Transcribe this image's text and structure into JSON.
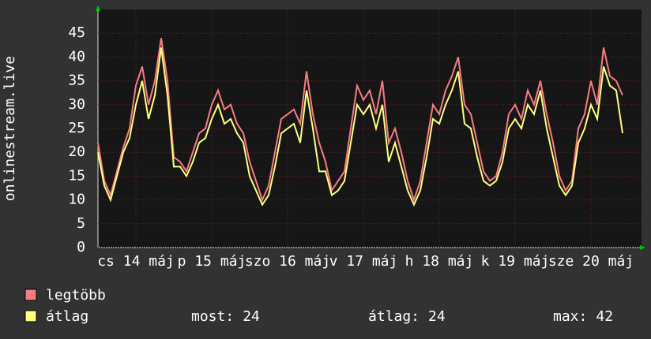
{
  "chart_data": {
    "type": "line",
    "ylabel": "onlinestream.live",
    "x": [
      0,
      2,
      4,
      6,
      8,
      10,
      12,
      14,
      16,
      18,
      20,
      22,
      24,
      26,
      28,
      30,
      32,
      34,
      36,
      38,
      40,
      42,
      44,
      46,
      48,
      50,
      52,
      54,
      56,
      58,
      60,
      62,
      64,
      66,
      68,
      70,
      72,
      74,
      76,
      78,
      80,
      82,
      84,
      86,
      88,
      90,
      92,
      94,
      96,
      98,
      100,
      102,
      104,
      106,
      108,
      110,
      112,
      114,
      116,
      118,
      120,
      122,
      124,
      126,
      128,
      130,
      132,
      134,
      136,
      138,
      140,
      142,
      144,
      146,
      148,
      150,
      152,
      154,
      156,
      158,
      160,
      162,
      164,
      166
    ],
    "series": [
      {
        "name": "legtöbb",
        "color": "#f87c84",
        "values": [
          22,
          14,
          11,
          16,
          21,
          25,
          34,
          38,
          30,
          35,
          44,
          35,
          19,
          18,
          16,
          20,
          24,
          25,
          30,
          33,
          29,
          30,
          26,
          24,
          18,
          14,
          10,
          13,
          20,
          27,
          28,
          29,
          26,
          37,
          28,
          22,
          18,
          12,
          14,
          16,
          25,
          34,
          31,
          33,
          28,
          35,
          22,
          25,
          20,
          14,
          10,
          14,
          22,
          30,
          28,
          33,
          36,
          40,
          30,
          28,
          22,
          16,
          14,
          15,
          20,
          28,
          30,
          27,
          33,
          30,
          35,
          28,
          22,
          15,
          12,
          14,
          25,
          28,
          35,
          30,
          42,
          36,
          35,
          32
        ]
      },
      {
        "name": "átlag",
        "color": "#ffff80",
        "values": [
          20,
          13,
          10,
          15,
          20,
          23,
          30,
          35,
          27,
          32,
          42,
          32,
          17,
          17,
          15,
          18,
          22,
          23,
          27,
          30,
          26,
          27,
          24,
          22,
          15,
          12,
          9,
          11,
          17,
          24,
          25,
          26,
          22,
          33,
          25,
          16,
          16,
          11,
          12,
          14,
          22,
          30,
          28,
          30,
          25,
          30,
          18,
          22,
          17,
          12,
          9,
          12,
          19,
          27,
          26,
          30,
          33,
          37,
          26,
          25,
          19,
          14,
          13,
          14,
          18,
          25,
          27,
          25,
          30,
          28,
          33,
          25,
          19,
          13,
          11,
          13,
          22,
          25,
          30,
          27,
          38,
          34,
          33,
          24
        ]
      }
    ],
    "xlim": [
      0,
      172
    ],
    "xticks": [
      {
        "value": 12,
        "label": "cs 14 máj"
      },
      {
        "value": 36,
        "label": "p 15 máj"
      },
      {
        "value": 60,
        "label": "szo 16 máj"
      },
      {
        "value": 84,
        "label": "v 17 máj"
      },
      {
        "value": 108,
        "label": "h 18 máj"
      },
      {
        "value": 132,
        "label": "k 19 máj"
      },
      {
        "value": 156,
        "label": "sze 20 máj"
      }
    ],
    "ylim": [
      0,
      50
    ],
    "yticks": [
      0,
      5,
      10,
      15,
      20,
      25,
      30,
      35,
      40,
      45
    ],
    "grid": true,
    "stats": [
      {
        "label": "most:",
        "value": 24
      },
      {
        "label": "átlag:",
        "value": 24
      },
      {
        "label": "max:",
        "value": 42
      }
    ]
  }
}
